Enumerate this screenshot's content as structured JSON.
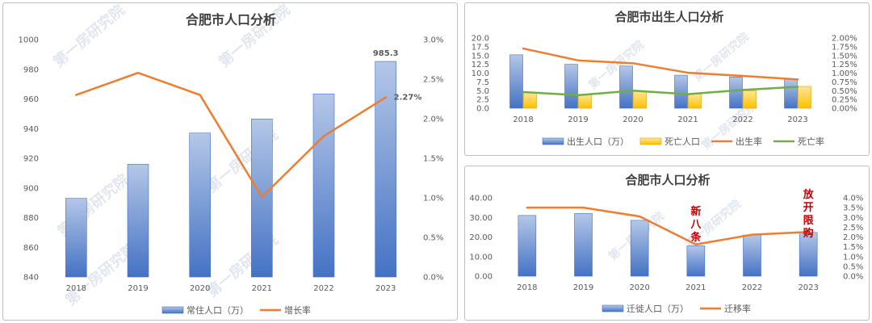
{
  "watermark": "第一房研究院",
  "colors": {
    "blue": "#4472c4",
    "blue_light": "#b4c7e7",
    "yellow": "#ffc000",
    "orange": "#ed7d31",
    "green": "#70ad47"
  },
  "chart_data": [
    {
      "id": "population",
      "type": "bar",
      "title": "合肥市人口分析",
      "categories": [
        "2018",
        "2019",
        "2020",
        "2021",
        "2022",
        "2023"
      ],
      "series": [
        {
          "name": "常住人口（万）",
          "type": "bar",
          "axis": "left",
          "values": [
            893,
            916,
            937,
            946.5,
            963.4,
            985.3
          ]
        },
        {
          "name": "增长率",
          "type": "line",
          "axis": "right",
          "values": [
            0.023,
            0.0258,
            0.023,
            0.0101,
            0.0178,
            0.0227
          ]
        }
      ],
      "ylim": [
        840,
        1000
      ],
      "y_ticks": [
        "1000",
        "980",
        "960",
        "940",
        "920",
        "900",
        "880",
        "860",
        "840"
      ],
      "y2lim": [
        0,
        0.03
      ],
      "y2_ticks": [
        "3.0%",
        "2.5%",
        "2.0%",
        "1.5%",
        "1.0%",
        "0.5%",
        "0.0%"
      ],
      "annotations": {
        "last_bar": "985.3",
        "last_rate": "2.27%"
      },
      "legend": "bottom",
      "grid": false
    },
    {
      "id": "births",
      "type": "bar",
      "title": "合肥市出生人口分析",
      "categories": [
        "2018",
        "2019",
        "2020",
        "2021",
        "2022",
        "2023"
      ],
      "series": [
        {
          "name": "出生人口（万）",
          "type": "bar",
          "axis": "left",
          "values": [
            15.2,
            12.5,
            12.0,
            9.4,
            8.9,
            8.2
          ]
        },
        {
          "name": "死亡人口",
          "type": "bar",
          "axis": "left",
          "values": [
            4.5,
            3.8,
            5.0,
            4.1,
            5.0,
            6.2
          ]
        },
        {
          "name": "出生率",
          "type": "line",
          "axis": "right",
          "values": [
            0.017,
            0.0136,
            0.0128,
            0.0101,
            0.0092,
            0.0082
          ]
        },
        {
          "name": "死亡率",
          "type": "line",
          "axis": "right",
          "values": [
            0.0046,
            0.0037,
            0.005,
            0.004,
            0.0052,
            0.0061
          ]
        }
      ],
      "ylim": [
        0,
        20
      ],
      "y_ticks": [
        "20.0",
        "17.5",
        "15.0",
        "12.5",
        "10.0",
        "7.5",
        "5.0",
        "2.5",
        "0.0"
      ],
      "y2lim": [
        0,
        0.02
      ],
      "y2_ticks": [
        "2.00%",
        "1.75%",
        "1.50%",
        "1.25%",
        "1.00%",
        "0.75%",
        "0.50%",
        "0.25%",
        "0.00%"
      ],
      "legend": "bottom",
      "grid": false
    },
    {
      "id": "migration",
      "type": "bar",
      "title": "合肥市人口分析",
      "categories": [
        "2018",
        "2019",
        "2020",
        "2021",
        "2022",
        "2023"
      ],
      "series": [
        {
          "name": "迁徙人口（万）",
          "type": "bar",
          "axis": "left",
          "values": [
            31,
            32,
            28.5,
            15.5,
            21,
            22.3
          ]
        },
        {
          "name": "迁移率",
          "type": "line",
          "axis": "right",
          "values": [
            0.035,
            0.035,
            0.0305,
            0.0162,
            0.0212,
            0.0226
          ]
        }
      ],
      "ylim": [
        0,
        40
      ],
      "y_ticks": [
        "40.00",
        "30.00",
        "20.00",
        "10.00",
        "0.00"
      ],
      "y2lim": [
        0,
        0.04
      ],
      "y2_ticks": [
        "4.0%",
        "3.5%",
        "3.0%",
        "2.5%",
        "2.0%",
        "1.5%",
        "1.0%",
        "0.5%",
        "0.0%"
      ],
      "annotations": {
        "policy_2021": "新八条",
        "policy_2023": "放开限购"
      },
      "legend": "bottom",
      "grid": false
    }
  ]
}
